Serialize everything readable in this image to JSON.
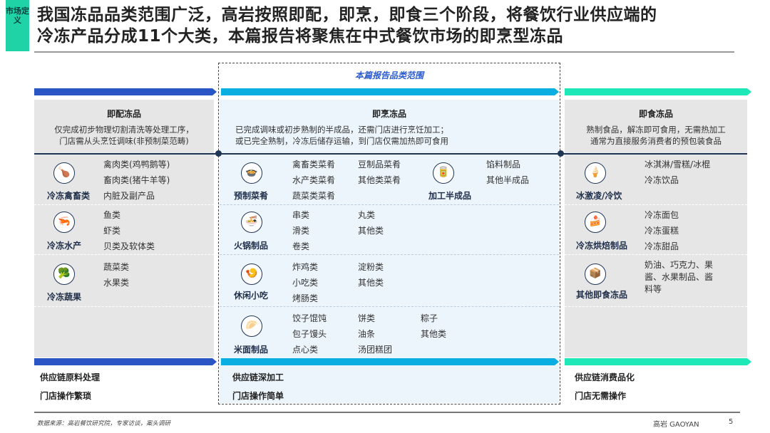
{
  "tag": "市场定义",
  "title": {
    "line1": "我国冻品品类范围广泛，高岩按照即配，即烹，即食三个阶段，将餐饮行业供应端的",
    "line2": "冷冻产品分成11个大类，本篇报告将聚焦在中式餐饮市场的即烹型冻品"
  },
  "scope_label": "本篇报告品类范围",
  "colors": {
    "ready_to_prepare": "#2a55c4",
    "ready_to_cook": "#0aaee0",
    "ready_to_eat": "#1ee8b8",
    "tag": "#1fd3a7"
  },
  "columns": [
    {
      "header": "即配冻品",
      "desc1": "仅完成初步物理切割清洗等处理工序，",
      "desc2": "门店需从头烹饪调味(非预制菜范畴)",
      "rows": [
        {
          "icon": "poultry-icon",
          "category": "冷冻禽畜类",
          "items": [
            "禽肉类(鸡鸭鹅等)",
            "畜肉类(猪牛羊等)",
            "内脏及副产品"
          ]
        },
        {
          "icon": "shrimp-icon",
          "category": "冷冻水产",
          "items": [
            "鱼类",
            "虾类",
            "贝类及软体类"
          ]
        },
        {
          "icon": "vegetable-icon",
          "category": "冷冻蔬果",
          "items": [
            "蔬菜类",
            "水果类"
          ]
        }
      ],
      "bottom1": "供应链原料处理",
      "bottom2": "门店操作繁琐"
    },
    {
      "header": "即烹冻品",
      "desc1": "已完成调味或初步熟制的半成品，还需门店进行烹饪加工；",
      "desc2": "或已完全熟制，冷冻后储存运输，到门店仅需加热即可食用",
      "rows": [
        {
          "icon": "dish-icon",
          "category": "预制菜肴",
          "items": [
            "禽畜类菜肴",
            "水产类菜肴",
            "蔬菜类菜肴",
            "豆制品菜肴",
            "其他类菜肴"
          ]
        },
        {
          "icon": "hotpot-icon",
          "category": "火锅制品",
          "items": [
            "串类",
            "滑类",
            "卷类",
            "丸类",
            "其他类"
          ]
        },
        {
          "icon": "snack-icon",
          "category": "休闲小吃",
          "items": [
            "炸鸡类",
            "小吃类",
            "烤肠类",
            "淀粉类",
            "其他类"
          ]
        },
        {
          "icon": "dumpling-icon",
          "category": "米面制品",
          "items": [
            "饺子馄饨",
            "包子馒头",
            "点心类",
            "饼类",
            "油条",
            "汤团糕团",
            "粽子",
            "其他类"
          ]
        }
      ],
      "extra": {
        "icon": "processed-icon",
        "category": "加工半成品",
        "items": [
          "馅料制品",
          "其他半成品"
        ]
      },
      "bottom1": "供应链深加工",
      "bottom2": "门店操作简单"
    },
    {
      "header": "即食冻品",
      "desc1": "熟制食品，解冻即可食用，无需热加工",
      "desc2": "通常为直接服务消费者的预包装食品",
      "rows": [
        {
          "icon": "ice-cream-icon",
          "category": "冰激凌/冷饮",
          "items": [
            "冰淇淋/雪糕/冰棍",
            "冷冻饮品"
          ]
        },
        {
          "icon": "cake-icon",
          "category": "冷冻烘焙制品",
          "items": [
            "冷冻面包",
            "冷冻蛋糕",
            "冷冻甜品"
          ]
        },
        {
          "icon": "package-icon",
          "category": "其他即食冻品",
          "items": [
            "奶油、巧克力、果",
            "酱、水果制品、酱",
            "料等"
          ]
        }
      ],
      "bottom1": "供应链消费品化",
      "bottom2": "门店无需操作"
    }
  ],
  "footer": {
    "source": "数据来源：高岩餐饮研究院，专家访谈，案头调研",
    "brand": "高岩 GAOYAN",
    "page": "5"
  }
}
